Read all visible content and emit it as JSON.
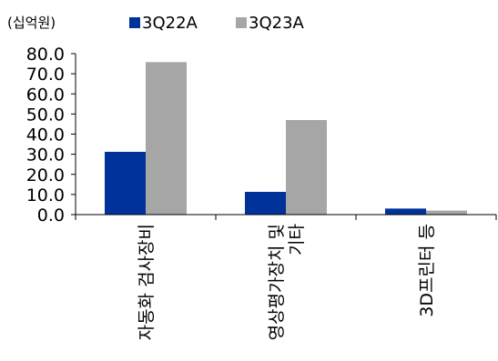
{
  "chart_data": {
    "type": "bar",
    "unit_label": "(십억원)",
    "categories": [
      [
        "자동화 검사장비"
      ],
      [
        "영상평가장치 및",
        "기타"
      ],
      [
        "3D프린터 등"
      ]
    ],
    "series": [
      {
        "name": "3Q22A",
        "color": "#003399",
        "values": [
          31.2,
          11.3,
          3.0
        ]
      },
      {
        "name": "3Q23A",
        "color": "#a6a6a6",
        "values": [
          75.8,
          47.0,
          2.0
        ]
      }
    ],
    "ylim": [
      0,
      80
    ],
    "yticks": [
      "0.0",
      "10.0",
      "20.0",
      "30.0",
      "40.0",
      "50.0",
      "60.0",
      "70.0",
      "80.0"
    ],
    "legend_position": "top",
    "grid": false
  }
}
